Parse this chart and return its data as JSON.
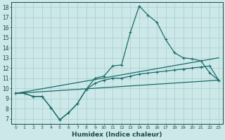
{
  "xlabel": "Humidex (Indice chaleur)",
  "xlim": [
    -0.5,
    23.5
  ],
  "ylim": [
    6.5,
    18.5
  ],
  "xticks": [
    0,
    1,
    2,
    3,
    4,
    5,
    6,
    7,
    8,
    9,
    10,
    11,
    12,
    13,
    14,
    15,
    16,
    17,
    18,
    19,
    20,
    21,
    22,
    23
  ],
  "yticks": [
    7,
    8,
    9,
    10,
    11,
    12,
    13,
    14,
    15,
    16,
    17,
    18
  ],
  "background_color": "#cce8e8",
  "grid_color": "#aacccc",
  "line_color": "#1a6b6b",
  "curve1_x": [
    0,
    1,
    2,
    3,
    4,
    5,
    6,
    7,
    8,
    9,
    10,
    11,
    12,
    13,
    14,
    15,
    16,
    17,
    18,
    19,
    20,
    21,
    22,
    23
  ],
  "curve1_y": [
    9.5,
    9.5,
    9.2,
    9.2,
    8.1,
    6.9,
    7.6,
    8.5,
    9.9,
    11.0,
    11.2,
    12.2,
    12.3,
    15.5,
    18.1,
    17.2,
    16.5,
    14.8,
    13.5,
    13.0,
    12.9,
    12.7,
    11.5,
    10.8
  ],
  "curve2_x": [
    0,
    1,
    2,
    3,
    4,
    5,
    6,
    7,
    8,
    9,
    10,
    11,
    12,
    13,
    14,
    15,
    16,
    17,
    18,
    19,
    20,
    21,
    22,
    23
  ],
  "curve2_y": [
    9.5,
    9.5,
    9.2,
    9.2,
    8.1,
    6.9,
    7.6,
    8.5,
    9.9,
    10.5,
    10.8,
    11.0,
    11.0,
    11.2,
    11.4,
    11.5,
    11.6,
    11.7,
    11.8,
    11.9,
    12.0,
    12.1,
    12.2,
    10.8
  ],
  "line3_x": [
    0,
    23
  ],
  "line3_y": [
    9.5,
    10.8
  ],
  "line4_x": [
    0,
    23
  ],
  "line4_y": [
    9.5,
    13.0
  ]
}
